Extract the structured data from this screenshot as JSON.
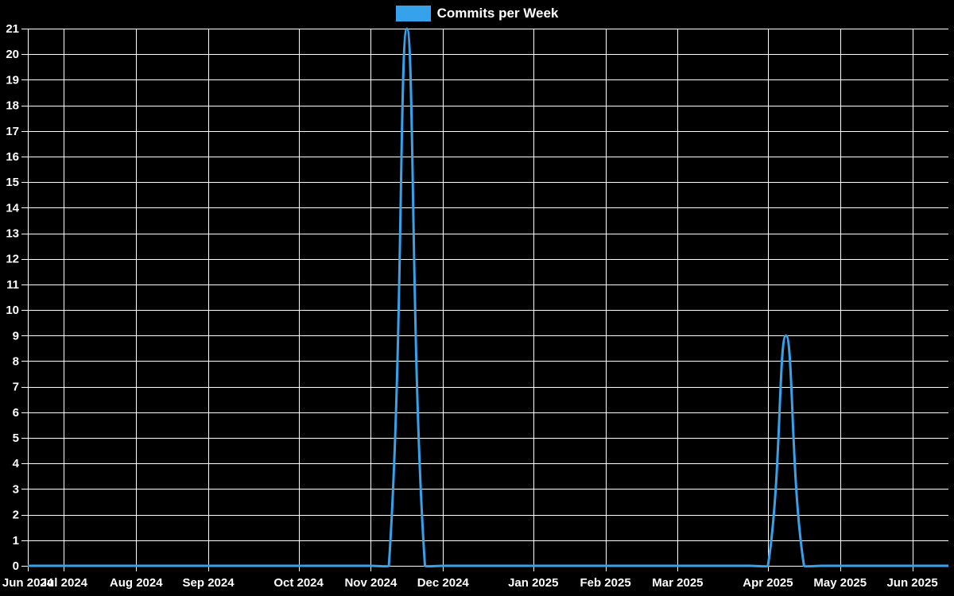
{
  "legend": {
    "label": "Commits per Week"
  },
  "colors": {
    "background": "#000000",
    "grid": "#ffffff",
    "text": "#ffffff",
    "line": "#36a2eb"
  },
  "chart_data": {
    "type": "line",
    "title": "Commits per Week",
    "x_unit": "week_index",
    "x": [
      0,
      1,
      2,
      3,
      4,
      5,
      6,
      7,
      8,
      9,
      10,
      11,
      12,
      13,
      14,
      15,
      16,
      17,
      18,
      19,
      20,
      21,
      22,
      23,
      24,
      25,
      26,
      27,
      28,
      29,
      30,
      31,
      32,
      33,
      34,
      35,
      36,
      37,
      38,
      39,
      40,
      41,
      42,
      43,
      44,
      45,
      46,
      47,
      48,
      49,
      50,
      51
    ],
    "values": [
      0,
      0,
      0,
      0,
      0,
      0,
      0,
      0,
      0,
      0,
      0,
      0,
      0,
      0,
      0,
      0,
      0,
      0,
      0,
      0,
      0,
      21,
      0,
      0,
      0,
      0,
      0,
      0,
      0,
      0,
      0,
      0,
      0,
      0,
      0,
      0,
      0,
      0,
      0,
      0,
      0,
      0,
      9,
      0,
      0,
      0,
      0,
      0,
      0,
      0,
      0,
      0
    ],
    "series_name": "Commits per Week",
    "line_color": "#36a2eb",
    "line_width": 3,
    "smoothing_tension": 0.4,
    "grid": true,
    "legend_position": "top-center",
    "ylim": [
      0,
      21
    ],
    "y_ticks": [
      0,
      1,
      2,
      3,
      4,
      5,
      6,
      7,
      8,
      9,
      10,
      11,
      12,
      13,
      14,
      15,
      16,
      17,
      18,
      19,
      20,
      21
    ],
    "x_tick_labels": [
      {
        "label": "Jun 2024",
        "week": 0
      },
      {
        "label": "Jul 2024",
        "week": 2
      },
      {
        "label": "Aug 2024",
        "week": 6
      },
      {
        "label": "Sep 2024",
        "week": 10
      },
      {
        "label": "Oct 2024",
        "week": 15
      },
      {
        "label": "Nov 2024",
        "week": 19
      },
      {
        "label": "Dec 2024",
        "week": 23
      },
      {
        "label": "Jan 2025",
        "week": 28
      },
      {
        "label": "Feb 2025",
        "week": 32
      },
      {
        "label": "Mar 2025",
        "week": 36
      },
      {
        "label": "Apr 2025",
        "week": 41
      },
      {
        "label": "May 2025",
        "week": 45
      },
      {
        "label": "Jun 2025",
        "week": 49
      }
    ],
    "annotations": {
      "peak_1": {
        "week": 21,
        "value": 21
      },
      "peak_2": {
        "week": 42,
        "value": 9
      }
    }
  }
}
